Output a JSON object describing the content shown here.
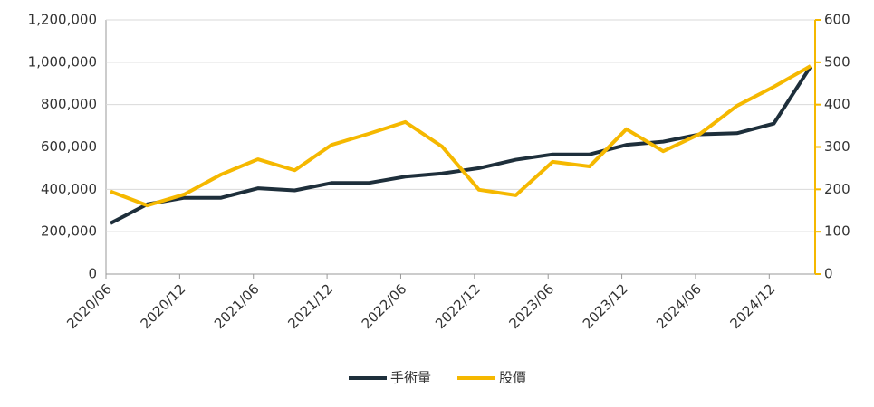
{
  "chart_data": {
    "type": "line",
    "categories": [
      "2020/06",
      null,
      "2020/12",
      null,
      "2021/06",
      null,
      "2021/12",
      null,
      "2022/06",
      null,
      "2022/12",
      null,
      "2023/06",
      null,
      "2023/12",
      null,
      "2024/06",
      null,
      "2024/12",
      null
    ],
    "series": [
      {
        "name": "手術量",
        "color": "#1e2f3b",
        "values": [
          240000,
          330000,
          360000,
          360000,
          405000,
          395000,
          430000,
          430000,
          460000,
          475000,
          500000,
          540000,
          565000,
          565000,
          610000,
          625000,
          660000,
          665000,
          710000,
          980000
        ]
      },
      {
        "name": "股價",
        "color": "#f5b800",
        "axis": "y2",
        "values": [
          195,
          162,
          188,
          235,
          271,
          245,
          305,
          331,
          359,
          301,
          199,
          186,
          265,
          254,
          342,
          290,
          331,
          397,
          442,
          491
        ]
      }
    ],
    "ylim": [
      0,
      1200000
    ],
    "yticks": [
      0,
      {
        "value": 200000,
        "label": "200,000"
      },
      {
        "value": 400000,
        "label": "400,000"
      },
      {
        "value": 600000,
        "label": "600,000"
      },
      {
        "value": 800000,
        "label": "800,000"
      },
      {
        "value": 1000000,
        "label": "1,000,000"
      },
      {
        "value": 1200000,
        "label": "1,200,000"
      }
    ],
    "y2lim": [
      0,
      600
    ],
    "y2ticks": [
      0,
      100,
      200,
      300,
      400,
      500,
      600
    ],
    "y2color": "#f5b800",
    "grid": true,
    "legend": "bottom"
  }
}
